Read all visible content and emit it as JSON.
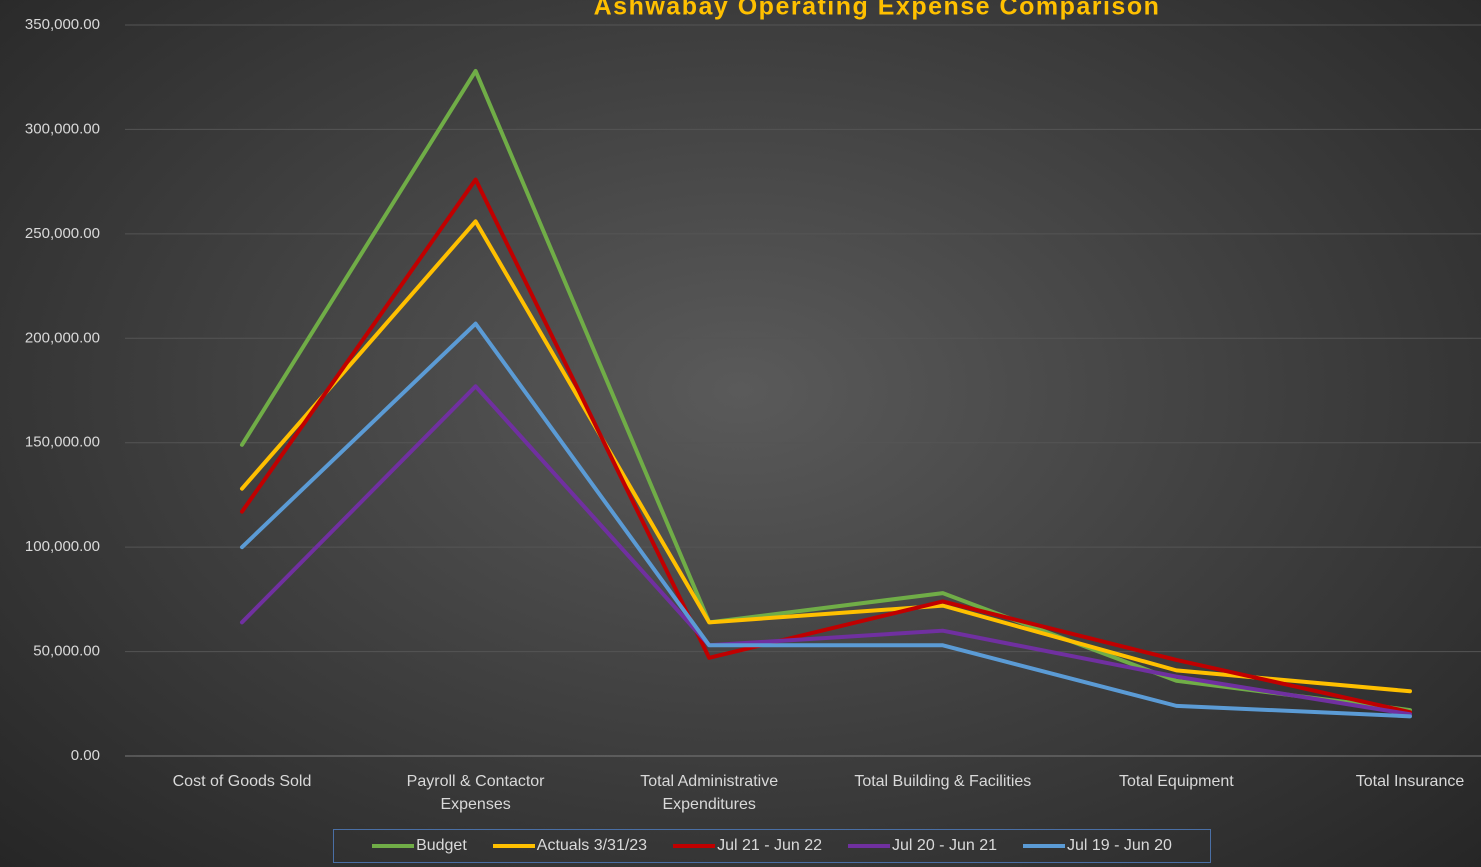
{
  "chart_data": {
    "type": "line",
    "title": "Ashwabay Operating Expense Comparison",
    "categories": [
      "Cost of Goods Sold",
      "Payroll  & Contactor Expenses",
      "Total Administrative Expenditures",
      "Total Building & Facilities",
      "Total Equipment",
      "Total Insurance"
    ],
    "series": [
      {
        "name": "Budget",
        "color": "#70ad47",
        "values": [
          149000,
          328000,
          64000,
          78000,
          36000,
          22000
        ]
      },
      {
        "name": "Actuals 3/31/23",
        "color": "#ffc000",
        "values": [
          128000,
          256000,
          64000,
          72000,
          41000,
          31000
        ]
      },
      {
        "name": "Jul 21 - Jun 22",
        "color": "#c00000",
        "values": [
          117000,
          276000,
          47000,
          74000,
          46000,
          21000
        ]
      },
      {
        "name": "Jul 20 - Jun 21",
        "color": "#7030a0",
        "values": [
          64000,
          177000,
          53000,
          60000,
          38000,
          20000
        ]
      },
      {
        "name": "Jul 19 - Jun 20",
        "color": "#5b9bd5",
        "values": [
          100000,
          207000,
          53000,
          53000,
          24000,
          19000
        ]
      }
    ],
    "ylim": [
      0,
      350000
    ],
    "yticks": [
      {
        "value": 0,
        "label": "0.00"
      },
      {
        "value": 50000,
        "label": "50,000.00"
      },
      {
        "value": 100000,
        "label": "100,000.00"
      },
      {
        "value": 150000,
        "label": "150,000.00"
      },
      {
        "value": 200000,
        "label": "200,000.00"
      },
      {
        "value": 250000,
        "label": "250,000.00"
      },
      {
        "value": 300000,
        "label": "300,000.00"
      },
      {
        "value": 350000,
        "label": "350,000.00"
      }
    ],
    "grid": true,
    "legend": "bottom"
  }
}
